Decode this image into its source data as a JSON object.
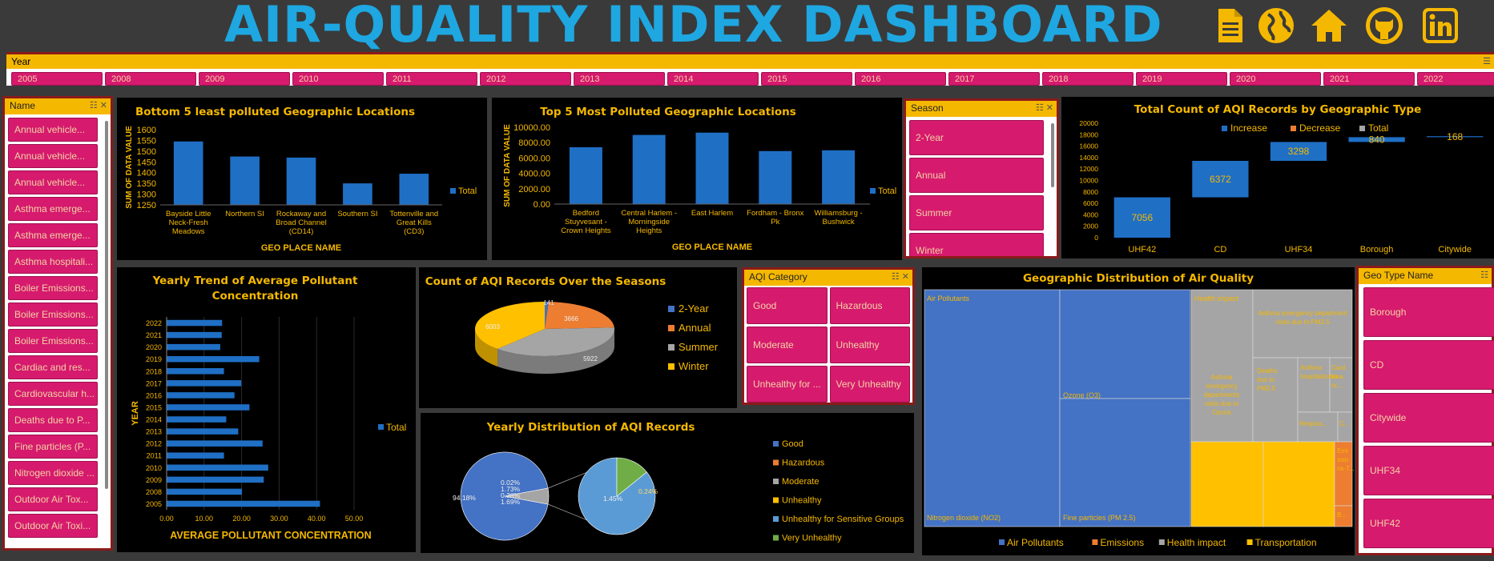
{
  "header": {
    "title": "AIR-QUALITY INDEX DASHBOARD",
    "icons": [
      "document-icon",
      "globe-icon",
      "home-icon",
      "github-icon",
      "linkedin-icon"
    ]
  },
  "year_slicer": {
    "label": "Year",
    "years": [
      "2005",
      "2008",
      "2009",
      "2010",
      "2011",
      "2012",
      "2013",
      "2014",
      "2015",
      "2016",
      "2017",
      "2018",
      "2019",
      "2020",
      "2021",
      "2022"
    ]
  },
  "name_slicer": {
    "label": "Name",
    "items": [
      "Annual vehicle...",
      "Annual vehicle...",
      "Annual vehicle...",
      "Asthma emerge...",
      "Asthma emerge...",
      "Asthma hospitali...",
      "Boiler Emissions...",
      "Boiler Emissions...",
      "Boiler Emissions...",
      "Cardiac and res...",
      "Cardiovascular h...",
      "Deaths due to P...",
      "Fine particles (P...",
      "Nitrogen dioxide ...",
      "Outdoor Air Tox...",
      "Outdoor Air Toxi..."
    ]
  },
  "season_slicer": {
    "label": "Season",
    "items": [
      "2-Year",
      "Annual",
      "Summer",
      "Winter"
    ]
  },
  "aqi_slicer": {
    "label": "AQI Category",
    "items": [
      "Good",
      "Hazardous",
      "Moderate",
      "Unhealthy",
      "Unhealthy for ...",
      "Very Unhealthy"
    ]
  },
  "geo_slicer": {
    "label": "Geo Type Name",
    "items": [
      "Borough",
      "CD",
      "Citywide",
      "UHF34",
      "UHF42"
    ]
  },
  "colors": {
    "accent": "#f5b800",
    "blue": "#1f6fc5",
    "orange": "#ed7d31",
    "gray": "#a5a5a5",
    "chip": "#d61a6e",
    "title": "#1ea7e1"
  },
  "chart_data": [
    {
      "type": "bar",
      "title": "Bottom 5 least polluted Geographic Locations",
      "xlabel": "GEO PLACE NAME",
      "ylabel": "SUM OF DATA VALUE",
      "categories": [
        "Bayside Little Neck-Fresh Meadows",
        "Northern SI",
        "Rockaway and Broad Channel (CD14)",
        "Southern SI",
        "Tottenville and Great Kills (CD3)"
      ],
      "series": [
        {
          "name": "Total",
          "values": [
            1545,
            1475,
            1470,
            1350,
            1395
          ]
        }
      ],
      "ylim": [
        1250,
        1600
      ],
      "yticks": [
        "1600",
        "1550",
        "1500",
        "1450",
        "1400",
        "1350",
        "1300",
        "1250"
      ]
    },
    {
      "type": "bar",
      "title": "Top 5 Most Polluted Geographic Locations",
      "xlabel": "GEO PLACE NAME",
      "ylabel": "SUM OF DATA VALUE",
      "categories": [
        "Bedford Stuyvesant - Crown Heights",
        "Central Harlem - Morningside Heights",
        "East Harlem",
        "Fordham - Bronx Pk",
        "Williamsburg - Bushwick"
      ],
      "series": [
        {
          "name": "Total",
          "values": [
            7400,
            9000,
            9300,
            6900,
            7000
          ]
        }
      ],
      "ylim": [
        0,
        10000
      ],
      "yticks": [
        "10000.00",
        "8000.00",
        "6000.00",
        "4000.00",
        "2000.00",
        "0.00"
      ]
    },
    {
      "type": "bar",
      "title": "Total Count of AQI Records by Geographic Type",
      "legend": [
        "Increase",
        "Decrease",
        "Total"
      ],
      "categories": [
        "UHF42",
        "CD",
        "UHF34",
        "Borough",
        "Citywide"
      ],
      "values": [
        7056,
        6372,
        3298,
        840,
        168
      ],
      "labels": [
        "7056",
        "6372",
        "3298",
        "840",
        "168"
      ],
      "ylim": [
        0,
        20000
      ],
      "yticks": [
        "20000",
        "18000",
        "16000",
        "14000",
        "12000",
        "10000",
        "8000",
        "6000",
        "4000",
        "2000",
        "0"
      ]
    },
    {
      "type": "bar",
      "title": "Yearly Trend of Average Pollutant Concentration",
      "xlabel": "AVERAGE POLLUTANT CONCENTRATION",
      "ylabel": "YEAR",
      "categories": [
        "2022",
        "2021",
        "2020",
        "2019",
        "2018",
        "2017",
        "2016",
        "2015",
        "2014",
        "2013",
        "2012",
        "2011",
        "2010",
        "2009",
        "2008",
        "2005"
      ],
      "series": [
        {
          "name": "Total",
          "values": [
            14.8,
            14.7,
            14.3,
            24.7,
            15.3,
            19.9,
            18.1,
            22.1,
            15.9,
            19.1,
            25.6,
            15.3,
            27.1,
            25.9,
            20.1,
            40.9
          ]
        }
      ],
      "xlim": [
        0,
        60
      ],
      "xticks": [
        "0.00",
        "10.00",
        "20.00",
        "30.00",
        "40.00",
        "50.00"
      ]
    },
    {
      "type": "pie",
      "title": "Count of AQI Records Over the  Seasons",
      "categories": [
        "2-Year",
        "Annual",
        "Summer",
        "Winter"
      ],
      "values": [
        141,
        3666,
        5922,
        6003
      ],
      "labels": [
        "141",
        "3666",
        "5922",
        "6003"
      ]
    },
    {
      "type": "pie",
      "title": "Yearly Distribution of  AQI Records",
      "categories": [
        "Good",
        "Hazardous",
        "Moderate",
        "Unhealthy",
        "Unhealthy for Sensitive Groups",
        "Very Unhealthy"
      ],
      "values": [
        94.18,
        0.02,
        1.73,
        0.38,
        1.45,
        0.24
      ],
      "labels": [
        "94.18%",
        "0.02%",
        "1.73%",
        "0.38%",
        "1.45%",
        "0.24%"
      ],
      "extra_label": "1.69%"
    },
    {
      "type": "treemap",
      "title": "Geographic Distribution of Air Quality",
      "legend": [
        "Air Pollutants",
        "Emissions",
        "Health impact",
        "Transportation"
      ],
      "cells": [
        "Air Pollutants",
        "Nitrogen dioxide (NO2)",
        "Ozone (O3)",
        "Fine particles (PM 2.5)",
        "Health impact",
        "Asthma emergency department visits due to PM2.5",
        "Asthma emergency departments visits due to Ozone",
        "Deaths due to PM2.5",
        "Asthma hospitalizatio...",
        "Card iova sc...",
        "Respira...",
        "C...",
        "Emi ssio ns-T...",
        "B..."
      ]
    }
  ]
}
